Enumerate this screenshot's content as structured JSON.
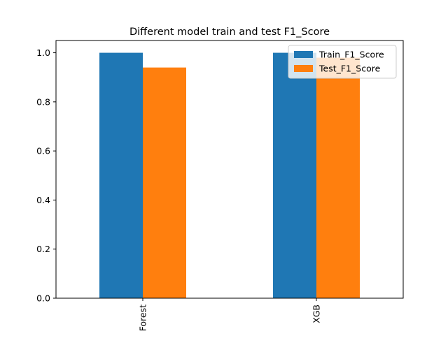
{
  "chart_data": {
    "type": "bar",
    "title": "Different model train and test F1_Score",
    "xlabel": "",
    "ylabel": "",
    "categories": [
      "Forest",
      "XGB"
    ],
    "series": [
      {
        "name": "Train_F1_Score",
        "values": [
          1.0,
          1.0
        ],
        "color": "#1f77b4"
      },
      {
        "name": "Test_F1_Score",
        "values": [
          0.94,
          0.98
        ],
        "color": "#ff7f0e"
      }
    ],
    "ylim": [
      0,
      1.05
    ],
    "yticks": [
      "0.0",
      "0.2",
      "0.4",
      "0.6",
      "0.8",
      "1.0"
    ],
    "grid": false,
    "legend_position": "top-right"
  }
}
